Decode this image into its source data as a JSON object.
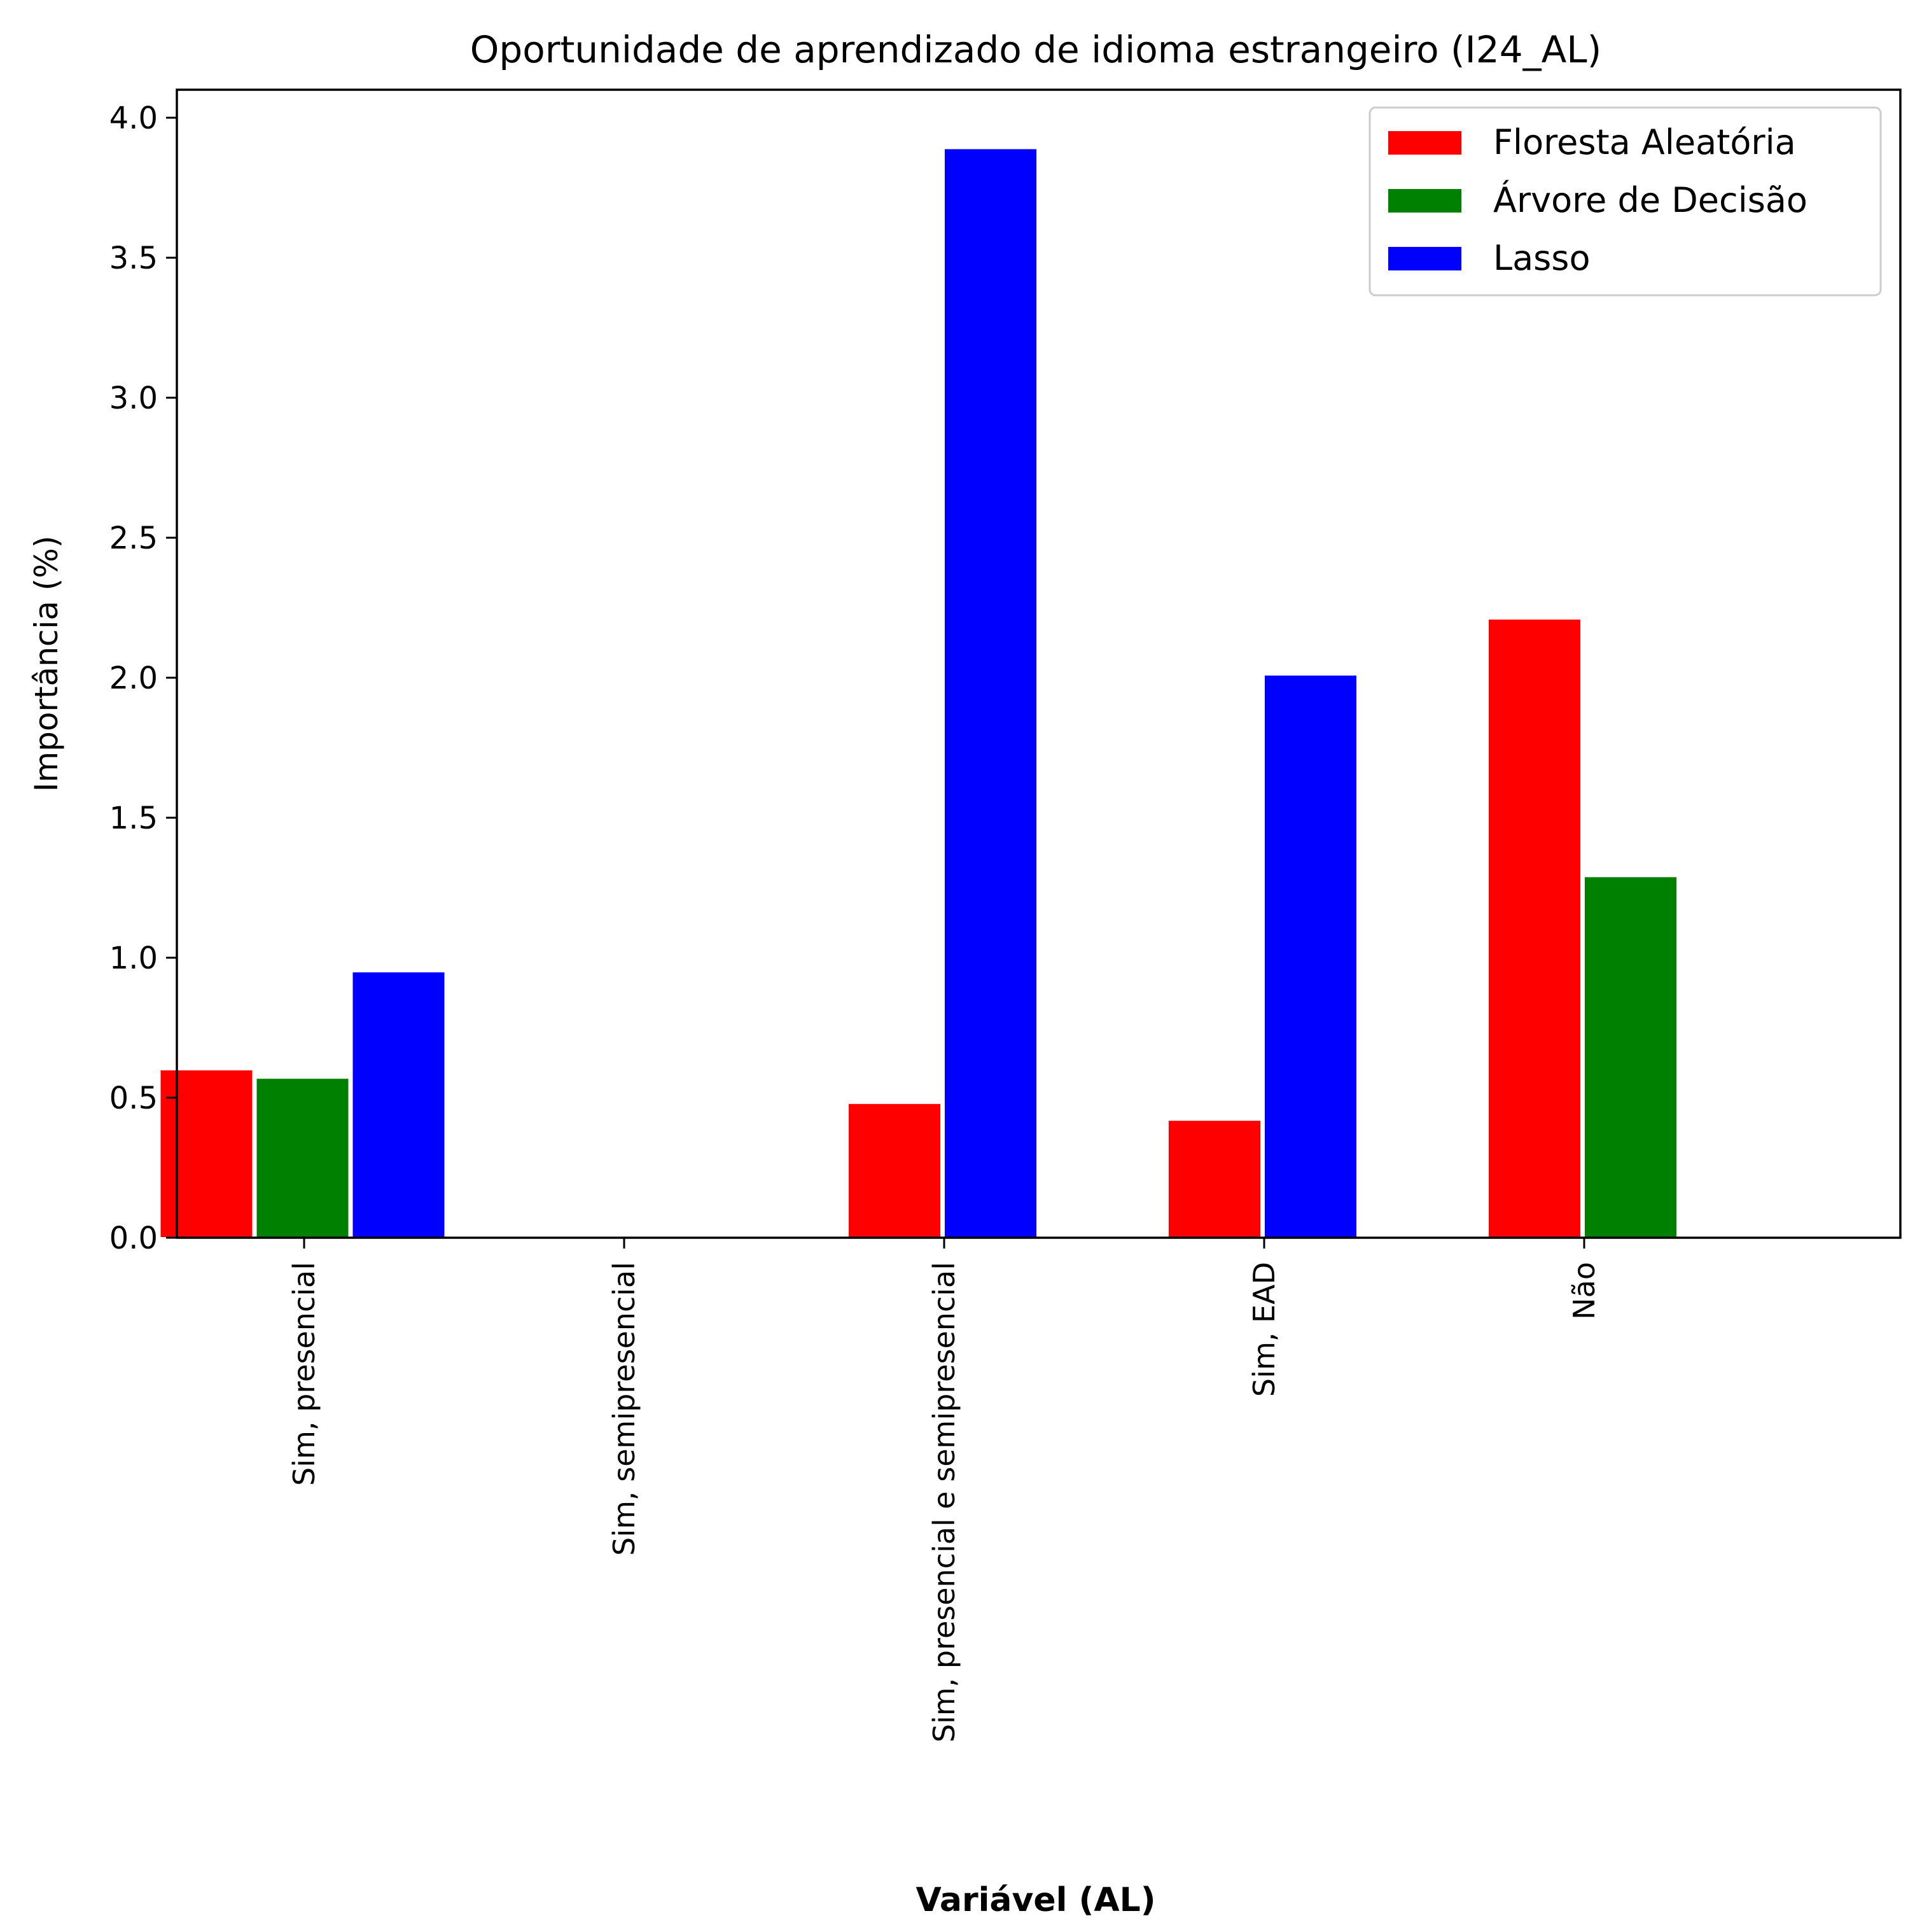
{
  "chart_data": {
    "type": "bar",
    "title": "Oportunidade de aprendizado de idioma estrangeiro (I24_AL)",
    "xlabel": "Variável (AL)",
    "ylabel": "Importância (%)",
    "ylim": [
      0,
      4.1
    ],
    "yticks": [
      "0.0",
      "0.5",
      "1.0",
      "1.5",
      "2.0",
      "2.5",
      "3.0",
      "3.5",
      "4.0"
    ],
    "grid": false,
    "legend_position": "top-right",
    "categories": [
      "Sim, presencial",
      "Sim, semipresencial",
      "Sim, presencial e semipresencial",
      "Sim, EAD",
      "Não"
    ],
    "series": [
      {
        "name": "Floresta Aleatória",
        "color": "#ff0000",
        "values": [
          0.6,
          0,
          0.48,
          0.42,
          2.21
        ]
      },
      {
        "name": "Árvore de Decisão",
        "color": "#008000",
        "values": [
          0.57,
          0,
          0,
          0,
          1.29
        ]
      },
      {
        "name": "Lasso",
        "color": "#0000ff",
        "values": [
          0.95,
          0,
          3.89,
          2.01,
          0
        ]
      }
    ]
  }
}
